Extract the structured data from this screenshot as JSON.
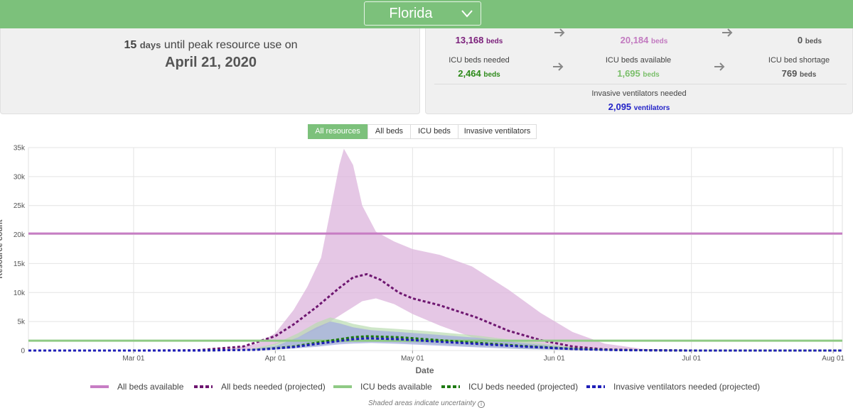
{
  "header": {
    "state": "Florida",
    "accent_color": "#7cc17b",
    "dropdown_icon": "chevron-down-icon"
  },
  "peak": {
    "days": "15",
    "days_unit": "days",
    "text": "until peak resource use on",
    "date": "April 21, 2020"
  },
  "stats": {
    "beds_needed": {
      "value": "13,168",
      "unit": "beds"
    },
    "beds_available": {
      "value": "20,184",
      "unit": "beds"
    },
    "beds_shortage": {
      "value": "0",
      "unit": "beds"
    },
    "icu_needed": {
      "label": "ICU beds needed",
      "value": "2,464",
      "unit": "beds"
    },
    "icu_available": {
      "label": "ICU beds available",
      "value": "1,695",
      "unit": "beds"
    },
    "icu_shortage": {
      "label": "ICU bed shortage",
      "value": "769",
      "unit": "beds"
    },
    "ventilators": {
      "label": "Invasive ventilators needed",
      "value": "2,095",
      "unit": "ventilators"
    },
    "arrow_icon": "arrow-right-icon"
  },
  "toggles": [
    {
      "label": "All resources",
      "active": true
    },
    {
      "label": "All beds",
      "active": false
    },
    {
      "label": "ICU beds",
      "active": false
    },
    {
      "label": "Invasive ventilators",
      "active": false
    }
  ],
  "chart_data": {
    "type": "line",
    "xlabel": "Date",
    "ylabel": "Resource count",
    "x_ticks": [
      "Mar 01",
      "Apr 01",
      "May 01",
      "Jun 01",
      "Jul 01",
      "Aug 01"
    ],
    "y_ticks": [
      "0",
      "5k",
      "10k",
      "15k",
      "20k",
      "25k",
      "30k",
      "35k"
    ],
    "xlim": [
      "2020-02-07",
      "2020-08-03"
    ],
    "ylim": [
      0,
      35000
    ],
    "grid": true,
    "legend_position": "bottom",
    "series": [
      {
        "name": "All beds available",
        "style": "solid",
        "color": "#c77dc4",
        "dates": [
          "2020-02-07",
          "2020-08-03"
        ],
        "values": [
          20184,
          20184
        ]
      },
      {
        "name": "All beds needed (projected)",
        "style": "dashed",
        "color": "#6e1670",
        "dates": [
          "2020-02-07",
          "2020-03-01",
          "2020-03-15",
          "2020-03-25",
          "2020-04-01",
          "2020-04-05",
          "2020-04-10",
          "2020-04-15",
          "2020-04-18",
          "2020-04-21",
          "2020-04-24",
          "2020-04-28",
          "2020-05-01",
          "2020-05-07",
          "2020-05-15",
          "2020-05-22",
          "2020-05-29",
          "2020-06-05",
          "2020-06-12",
          "2020-06-20",
          "2020-07-01",
          "2020-08-03"
        ],
        "values": [
          0,
          0,
          50,
          700,
          2500,
          4500,
          7500,
          10800,
          12600,
          13168,
          12200,
          10000,
          9000,
          7800,
          5700,
          3400,
          1800,
          700,
          200,
          60,
          0,
          0
        ]
      },
      {
        "name": "ICU beds available",
        "style": "solid",
        "color": "#8fca85",
        "dates": [
          "2020-02-07",
          "2020-08-03"
        ],
        "values": [
          1695,
          1695
        ]
      },
      {
        "name": "ICU beds needed (projected)",
        "style": "dashed",
        "color": "#1e7a12",
        "dates": [
          "2020-02-07",
          "2020-03-15",
          "2020-03-28",
          "2020-04-05",
          "2020-04-12",
          "2020-04-18",
          "2020-04-21",
          "2020-04-28",
          "2020-05-05",
          "2020-05-15",
          "2020-05-25",
          "2020-06-05",
          "2020-06-15",
          "2020-07-01",
          "2020-08-03"
        ],
        "values": [
          0,
          0,
          150,
          700,
          1600,
          2300,
          2464,
          2300,
          1900,
          1350,
          800,
          300,
          80,
          0,
          0
        ]
      },
      {
        "name": "Invasive ventilators needed (projected)",
        "style": "dashed",
        "color": "#1f1fb8",
        "dates": [
          "2020-02-07",
          "2020-03-15",
          "2020-03-28",
          "2020-04-05",
          "2020-04-12",
          "2020-04-18",
          "2020-04-21",
          "2020-04-28",
          "2020-05-05",
          "2020-05-15",
          "2020-05-25",
          "2020-06-05",
          "2020-06-15",
          "2020-07-01",
          "2020-08-03"
        ],
        "values": [
          0,
          0,
          120,
          600,
          1350,
          1950,
          2095,
          1950,
          1600,
          1150,
          680,
          250,
          60,
          0,
          0
        ]
      }
    ],
    "uncertainty_bands": [
      {
        "series": "All beds needed (projected)",
        "color": "#dcb4dc",
        "dates": [
          "2020-03-20",
          "2020-03-28",
          "2020-04-01",
          "2020-04-05",
          "2020-04-08",
          "2020-04-11",
          "2020-04-13",
          "2020-04-15",
          "2020-04-16",
          "2020-04-18",
          "2020-04-20",
          "2020-04-23",
          "2020-04-27",
          "2020-05-01",
          "2020-05-07",
          "2020-05-14",
          "2020-05-22",
          "2020-05-29",
          "2020-06-05",
          "2020-06-12",
          "2020-06-20",
          "2020-07-01"
        ],
        "upper": [
          0,
          1200,
          3000,
          7000,
          11000,
          16000,
          24000,
          32000,
          34800,
          32000,
          25000,
          20500,
          18800,
          17500,
          16500,
          14500,
          10500,
          6500,
          3200,
          1200,
          300,
          0
        ],
        "lower": [
          0,
          200,
          1000,
          2000,
          3000,
          4000,
          5000,
          6000,
          6500,
          7500,
          8500,
          9000,
          8000,
          6300,
          4300,
          2300,
          900,
          400,
          150,
          50,
          0,
          0
        ]
      },
      {
        "series": "ICU beds needed (projected)",
        "color": "#b9dcb0",
        "dates": [
          "2020-03-25",
          "2020-04-01",
          "2020-04-06",
          "2020-04-10",
          "2020-04-13",
          "2020-04-15",
          "2020-04-18",
          "2020-04-22",
          "2020-04-28",
          "2020-05-05",
          "2020-05-15",
          "2020-05-25",
          "2020-06-05",
          "2020-06-15"
        ],
        "upper": [
          0,
          1200,
          3000,
          4800,
          5700,
          5300,
          4600,
          4000,
          3700,
          3300,
          2600,
          1600,
          600,
          0
        ],
        "lower": [
          0,
          200,
          500,
          800,
          1100,
          1300,
          1500,
          1600,
          1400,
          1100,
          700,
          300,
          80,
          0
        ]
      },
      {
        "series": "Invasive ventilators needed (projected)",
        "color": "#a3a8e0",
        "dates": [
          "2020-03-25",
          "2020-04-01",
          "2020-04-06",
          "2020-04-10",
          "2020-04-13",
          "2020-04-15",
          "2020-04-18",
          "2020-04-22",
          "2020-04-28",
          "2020-05-05",
          "2020-05-15",
          "2020-05-25",
          "2020-06-05",
          "2020-06-15"
        ],
        "upper": [
          0,
          800,
          2300,
          4000,
          5000,
          4700,
          4000,
          3500,
          3200,
          2800,
          2200,
          1300,
          450,
          0
        ],
        "lower": [
          0,
          150,
          400,
          650,
          900,
          1050,
          1200,
          1300,
          1150,
          900,
          550,
          250,
          60,
          0
        ]
      }
    ]
  },
  "legend": [
    {
      "label": "All beds available",
      "color": "#c77dc4",
      "style": "solid"
    },
    {
      "label": "All beds needed (projected)",
      "color": "#6e1670",
      "style": "dashed"
    },
    {
      "label": "ICU beds available",
      "color": "#8fca85",
      "style": "solid"
    },
    {
      "label": "ICU beds needed (projected)",
      "color": "#1e7a12",
      "style": "dashed"
    },
    {
      "label": "Invasive ventilators needed (projected)",
      "color": "#1f1fb8",
      "style": "dashed"
    }
  ],
  "note": "Shaded areas indicate uncertainty",
  "note_icon": "info-icon"
}
